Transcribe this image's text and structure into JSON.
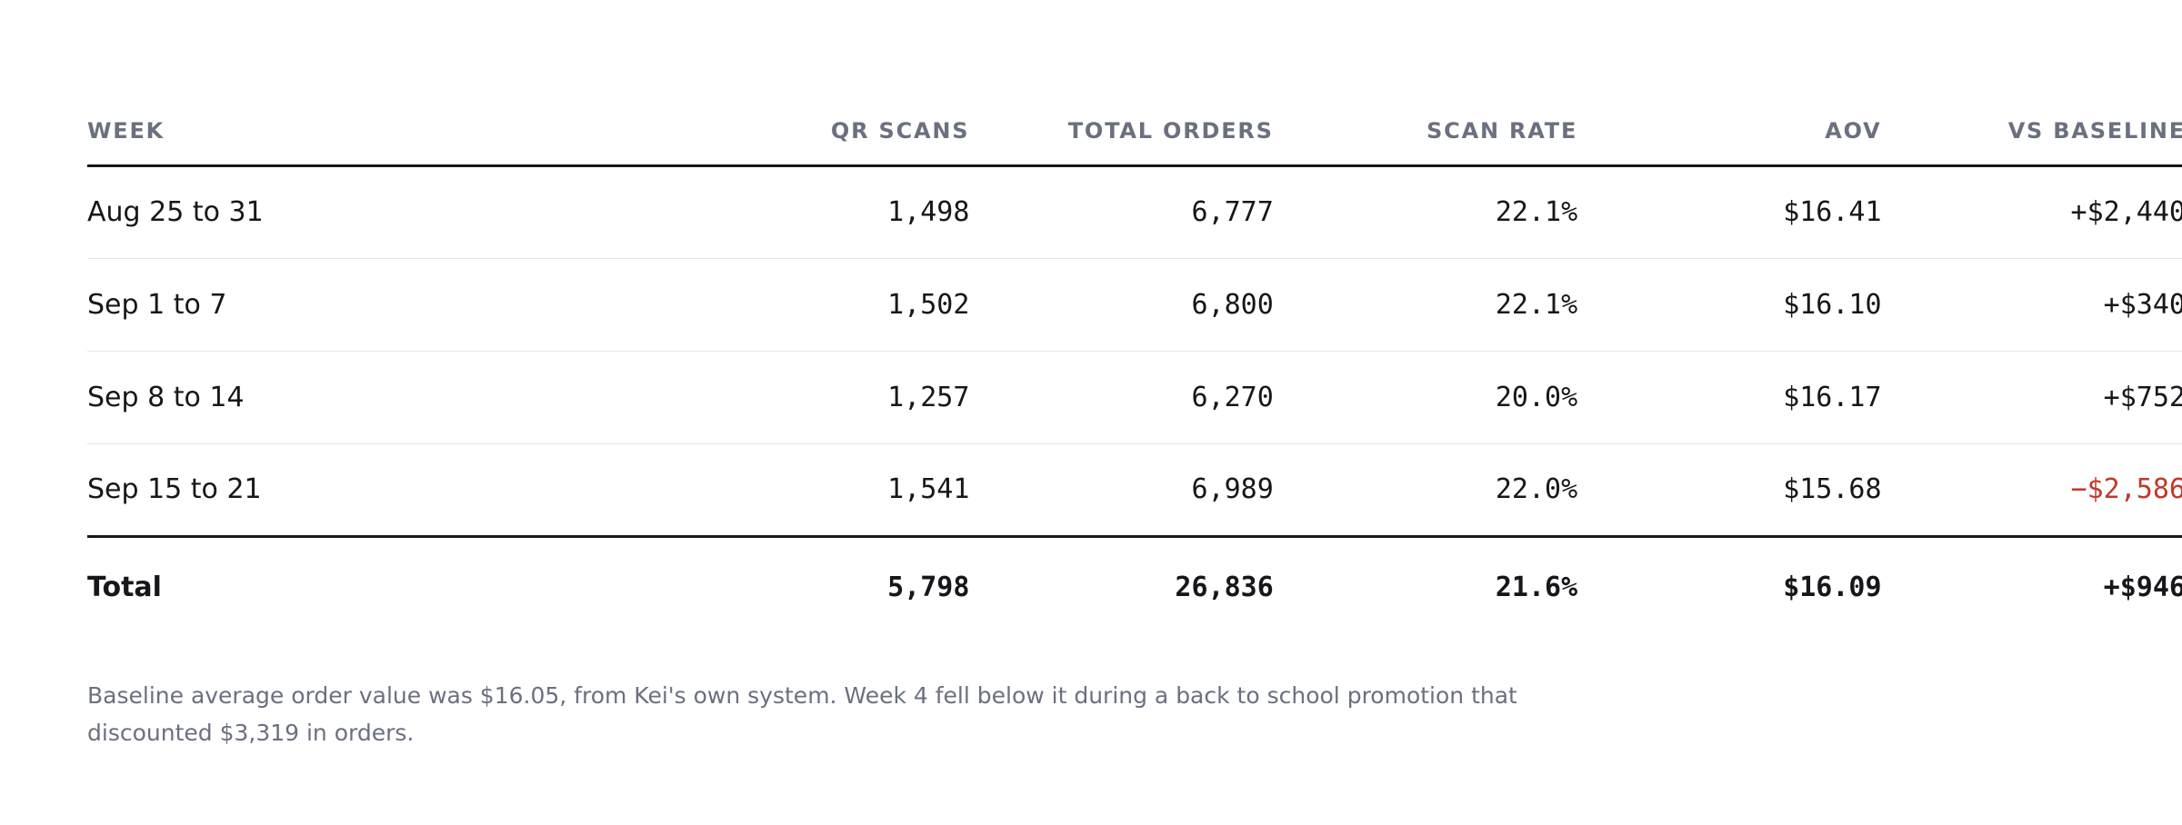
{
  "table": {
    "headers": {
      "week": "WEEK",
      "qr_scans": "QR SCANS",
      "total_orders": "TOTAL ORDERS",
      "scan_rate": "SCAN RATE",
      "aov": "AOV",
      "vs_baseline": "VS BASELINE"
    },
    "rows": [
      {
        "week": "Aug 25 to 31",
        "qr_scans": "1,498",
        "total_orders": "6,777",
        "scan_rate": "22.1%",
        "aov": "$16.41",
        "vs_baseline": "+$2,440"
      },
      {
        "week": "Sep 1 to 7",
        "qr_scans": "1,502",
        "total_orders": "6,800",
        "scan_rate": "22.1%",
        "aov": "$16.10",
        "vs_baseline": "+$340"
      },
      {
        "week": "Sep 8 to 14",
        "qr_scans": "1,257",
        "total_orders": "6,270",
        "scan_rate": "20.0%",
        "aov": "$16.17",
        "vs_baseline": "+$752"
      },
      {
        "week": "Sep 15 to 21",
        "qr_scans": "1,541",
        "total_orders": "6,989",
        "scan_rate": "22.0%",
        "aov": "$15.68",
        "vs_baseline": "−$2,586"
      }
    ],
    "total": {
      "week": "Total",
      "qr_scans": "5,798",
      "total_orders": "26,836",
      "scan_rate": "21.6%",
      "aov": "$16.09",
      "vs_baseline": "+$946"
    }
  },
  "colors": {
    "negative": "#c0392b",
    "muted_text": "#6b7080",
    "rule": "#16171a"
  },
  "note": "Baseline average order value was $16.05, from Kei's own system. Week 4 fell below it during a back to school promotion that discounted $3,319 in orders."
}
